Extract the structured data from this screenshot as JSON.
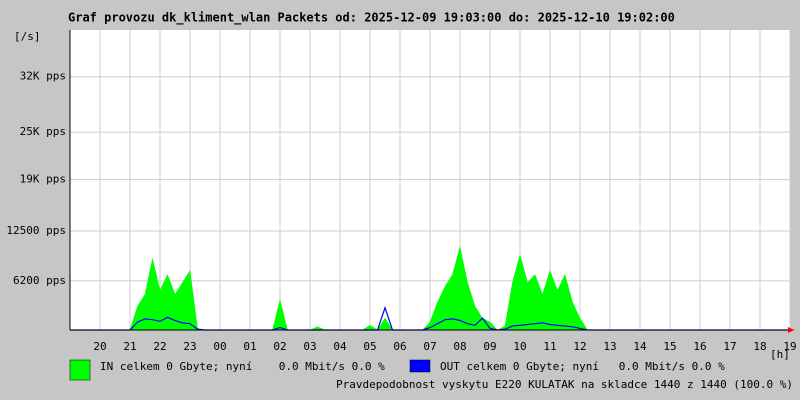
{
  "chart_data": {
    "type": "area",
    "title": "Graf provozu dk_kliment_wlan Packets od: 2025-12-09 19:03:00 do: 2025-12-10 19:02:00",
    "y_axis_label": "[/s]",
    "x_axis_label": "[h]",
    "footer": "Pravdepodobnost vyskytu E220 KULATAK na skladce 1440 z 1440 (100.0 %)",
    "footer_color": "#ff0000",
    "grid": true,
    "xlim": [
      0,
      24
    ],
    "ylim": [
      0,
      37900
    ],
    "yticks": [
      {
        "value": 6200,
        "label": "6200 pps"
      },
      {
        "value": 12500,
        "label": "12500 pps"
      },
      {
        "value": 19000,
        "label": "19K pps"
      },
      {
        "value": 25000,
        "label": "25K pps"
      },
      {
        "value": 32000,
        "label": "32K pps"
      }
    ],
    "xticks": [
      {
        "value": 1,
        "label": "20"
      },
      {
        "value": 2,
        "label": "21"
      },
      {
        "value": 3,
        "label": "22"
      },
      {
        "value": 4,
        "label": "23"
      },
      {
        "value": 5,
        "label": "00"
      },
      {
        "value": 6,
        "label": "01"
      },
      {
        "value": 7,
        "label": "02"
      },
      {
        "value": 8,
        "label": "03"
      },
      {
        "value": 9,
        "label": "04"
      },
      {
        "value": 10,
        "label": "05"
      },
      {
        "value": 11,
        "label": "06"
      },
      {
        "value": 12,
        "label": "07"
      },
      {
        "value": 13,
        "label": "08"
      },
      {
        "value": 14,
        "label": "09"
      },
      {
        "value": 15,
        "label": "10"
      },
      {
        "value": 16,
        "label": "11"
      },
      {
        "value": 17,
        "label": "12"
      },
      {
        "value": 18,
        "label": "13"
      },
      {
        "value": 19,
        "label": "14"
      },
      {
        "value": 20,
        "label": "15"
      },
      {
        "value": 21,
        "label": "16"
      },
      {
        "value": 22,
        "label": "17"
      },
      {
        "value": 23,
        "label": "18"
      },
      {
        "value": 24,
        "label": "19"
      }
    ],
    "x": [
      0,
      0.25,
      0.5,
      0.75,
      1,
      1.25,
      1.5,
      1.75,
      2,
      2.25,
      2.5,
      2.75,
      3,
      3.25,
      3.5,
      3.75,
      4,
      4.25,
      4.5,
      4.75,
      5,
      5.25,
      5.5,
      5.75,
      6,
      6.25,
      6.5,
      6.75,
      7,
      7.25,
      7.5,
      7.75,
      8,
      8.25,
      8.5,
      8.75,
      9,
      9.25,
      9.5,
      9.75,
      10,
      10.25,
      10.5,
      10.75,
      11,
      11.25,
      11.5,
      11.75,
      12,
      12.25,
      12.5,
      12.75,
      13,
      13.25,
      13.5,
      13.75,
      14,
      14.25,
      14.5,
      14.75,
      15,
      15.25,
      15.5,
      15.75,
      16,
      16.25,
      16.5,
      16.75,
      17,
      17.25,
      17.5,
      17.75,
      18,
      18.25,
      18.5,
      18.75,
      19,
      19.25,
      19.5,
      19.75,
      20,
      20.25,
      20.5,
      20.75,
      21,
      21.25,
      21.5,
      21.75,
      22,
      22.25,
      22.5,
      22.75,
      23,
      23.25,
      23.5,
      23.75,
      24
    ],
    "series": [
      {
        "name": "IN celkem 0 Gbyte; nyní    0.0 Mbit/s 0.0 %",
        "color": "#00ff00",
        "fill": true,
        "values": [
          0,
          0,
          0,
          0,
          0,
          0,
          0,
          0,
          0,
          3000,
          4500,
          9000,
          5000,
          7000,
          4500,
          6000,
          7500,
          200,
          0,
          0,
          0,
          0,
          0,
          0,
          0,
          0,
          0,
          0,
          3800,
          0,
          0,
          0,
          0,
          400,
          0,
          0,
          0,
          0,
          0,
          0,
          600,
          0,
          1500,
          0,
          0,
          0,
          0,
          0,
          1000,
          3500,
          5500,
          7000,
          10500,
          6000,
          3000,
          1500,
          1000,
          0,
          500,
          6000,
          9500,
          6000,
          7000,
          4500,
          7500,
          5000,
          7000,
          3500,
          1500,
          0,
          0,
          0,
          0,
          0,
          0,
          0,
          0,
          0,
          0,
          0,
          0,
          0,
          0,
          0,
          0,
          0,
          0,
          0,
          0,
          0,
          0,
          0,
          0,
          0,
          0,
          0,
          0
        ]
      },
      {
        "name": "OUT celkem 0 Gbyte; nyní   0.0 Mbit/s 0.0 %",
        "color": "#0000ff",
        "fill": false,
        "values": [
          0,
          0,
          0,
          0,
          0,
          0,
          0,
          0,
          0,
          1000,
          1400,
          1300,
          1100,
          1600,
          1200,
          900,
          800,
          100,
          0,
          0,
          0,
          0,
          0,
          0,
          0,
          0,
          0,
          0,
          300,
          0,
          0,
          0,
          0,
          0,
          0,
          0,
          0,
          0,
          0,
          0,
          0,
          0,
          2800,
          0,
          0,
          0,
          0,
          0,
          300,
          800,
          1300,
          1400,
          1200,
          800,
          600,
          1500,
          200,
          0,
          100,
          500,
          600,
          700,
          800,
          900,
          700,
          600,
          500,
          400,
          200,
          0,
          0,
          0,
          0,
          0,
          0,
          0,
          0,
          0,
          0,
          0,
          0,
          0,
          0,
          0,
          0,
          0,
          0,
          0,
          0,
          0,
          0,
          0,
          0,
          0,
          0,
          0,
          0
        ]
      }
    ]
  }
}
